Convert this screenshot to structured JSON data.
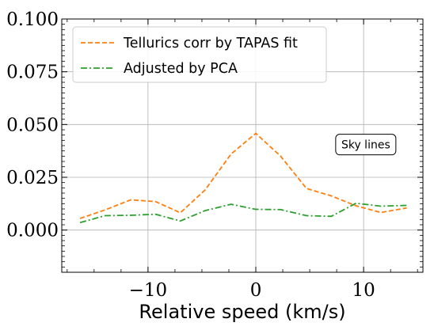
{
  "chart_data": {
    "type": "line",
    "xlabel": "Relative speed (km/s)",
    "ylabel": "",
    "xlim": [
      -18,
      15.5
    ],
    "ylim": [
      -0.02,
      0.1
    ],
    "xticks": [
      -10,
      0,
      10
    ],
    "xtick_labels": [
      "−10",
      "0",
      "10"
    ],
    "yticks": [
      0.0,
      0.025,
      0.05,
      0.075,
      0.1
    ],
    "ytick_labels": [
      "0.000",
      "0.025",
      "0.050",
      "0.075",
      "0.100"
    ],
    "grid": true,
    "legend_position": "upper-left",
    "series": [
      {
        "name": "Tellurics corr by TAPAS fit",
        "color": "#ff7f0e",
        "style": "dashed",
        "x": [
          -16.3,
          -14,
          -11.6,
          -9.3,
          -7,
          -4.7,
          -2.3,
          0,
          2.3,
          4.7,
          7,
          9.3,
          11.6,
          14
        ],
        "y": [
          0.0055,
          0.0095,
          0.0143,
          0.0135,
          0.0082,
          0.019,
          0.036,
          0.0458,
          0.035,
          0.0197,
          0.0162,
          0.0115,
          0.0083,
          0.0105
        ]
      },
      {
        "name": "Adjusted by PCA",
        "color": "#2ca02c",
        "style": "dashdot",
        "x": [
          -16.3,
          -14,
          -11.6,
          -9.3,
          -7,
          -4.7,
          -2.3,
          0,
          2.3,
          4.7,
          7,
          9.3,
          11.6,
          14
        ],
        "y": [
          0.0035,
          0.0068,
          0.007,
          0.0075,
          0.0043,
          0.0092,
          0.0122,
          0.0098,
          0.0097,
          0.0068,
          0.0065,
          0.0127,
          0.0113,
          0.0117
        ]
      }
    ],
    "annotations": [
      {
        "text": "Sky lines",
        "x": 10.2,
        "y": 0.0405
      }
    ]
  }
}
